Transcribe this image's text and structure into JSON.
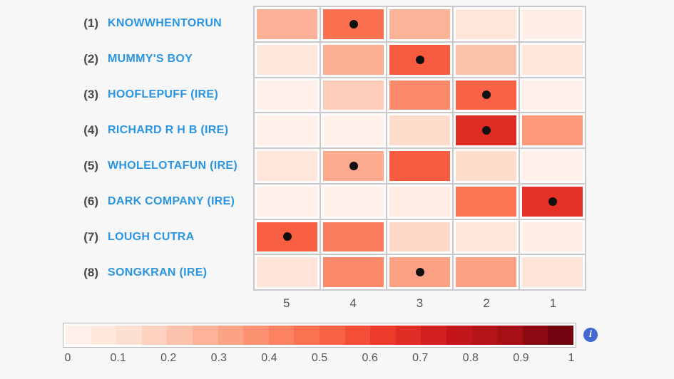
{
  "page": {
    "background": "#f7f7f8"
  },
  "colors": {
    "horse_name": "#2a96e2",
    "row_number": "#4a4a4a",
    "axis_label": "#555555",
    "grid_line": "#c9c9cb",
    "cell_background": "#fcfcfc",
    "dot": "#111111",
    "info_icon_background": "#4169cf",
    "colorbar_border": "#b5b5b7"
  },
  "icons": {
    "info": "i"
  },
  "chart_data": {
    "type": "heatmap",
    "title": "",
    "xlabel": "",
    "ylabel": "",
    "columns": [
      "5",
      "4",
      "3",
      "2",
      "1"
    ],
    "rows": [
      {
        "number": "(1)",
        "name": "KNOWWHENTORUN",
        "values": [
          0.28,
          0.48,
          0.27,
          0.09,
          0.04
        ],
        "dot_column": "4"
      },
      {
        "number": "(2)",
        "name": "MUMMY'S BOY",
        "values": [
          0.08,
          0.29,
          0.54,
          0.23,
          0.09
        ],
        "dot_column": "3"
      },
      {
        "number": "(3)",
        "name": "HOOFLEPUFF (IRE)",
        "values": [
          0.03,
          0.19,
          0.4,
          0.52,
          0.03
        ],
        "dot_column": "2"
      },
      {
        "number": "(4)",
        "name": "RICHARD R H B (IRE)",
        "values": [
          0.03,
          0.03,
          0.14,
          0.68,
          0.35
        ],
        "dot_column": "2"
      },
      {
        "number": "(5)",
        "name": "WHOLELOTAFUN (IRE)",
        "values": [
          0.09,
          0.3,
          0.54,
          0.14,
          0.03
        ],
        "dot_column": "4"
      },
      {
        "number": "(6)",
        "name": "DARK COMPANY (IRE)",
        "values": [
          0.03,
          0.03,
          0.05,
          0.47,
          0.66
        ],
        "dot_column": "1"
      },
      {
        "number": "(7)",
        "name": "LOUGH CUTRA",
        "values": [
          0.53,
          0.44,
          0.15,
          0.08,
          0.04
        ],
        "dot_column": "5"
      },
      {
        "number": "(8)",
        "name": "SONGKRAN (IRE)",
        "values": [
          0.1,
          0.4,
          0.33,
          0.33,
          0.1
        ],
        "dot_column": "3"
      }
    ],
    "colormap": "Reds",
    "colorbar": {
      "min": 0,
      "max": 1,
      "segments": 20,
      "ticks": [
        "0",
        "0.1",
        "0.2",
        "0.3",
        "0.4",
        "0.5",
        "0.6",
        "0.7",
        "0.8",
        "0.9",
        "1"
      ],
      "position": "bottom"
    },
    "legend": false,
    "grid": true
  }
}
